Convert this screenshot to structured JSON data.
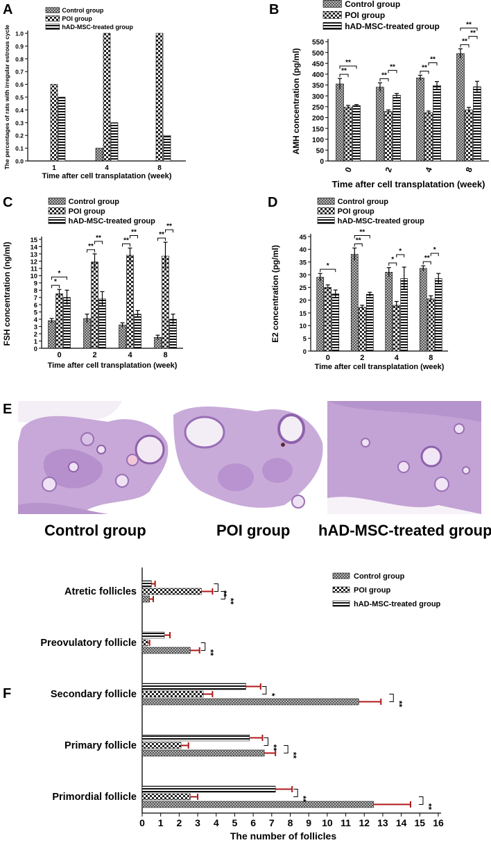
{
  "panels": [
    {
      "letter": "A",
      "type": "bar",
      "title": "",
      "legend": [
        "Control group",
        "POI group",
        "hAD-MSC-treated group"
      ],
      "legend_placement": "top-left",
      "ylabel": "The percentages of rats with irregular estrous cycle",
      "xlabel": "Time after cell transplatation (week)",
      "ylim": [
        0,
        1.0
      ],
      "yticks": [
        "0.0",
        "0.1",
        "0.2",
        "0.3",
        "0.4",
        "0.5",
        "0.6",
        "0.7",
        "0.8",
        "0.9",
        "1.0"
      ],
      "categories": [
        "1",
        "4",
        "8"
      ],
      "series": [
        {
          "name": "Control group",
          "values": [
            0,
            0.1,
            0
          ]
        },
        {
          "name": "POI group",
          "values": [
            0.6,
            1.0,
            1.0
          ]
        },
        {
          "name": "hAD-MSC-treated group",
          "values": [
            0.5,
            0.3,
            0.2
          ]
        }
      ],
      "significance": []
    },
    {
      "letter": "B",
      "type": "bar",
      "title": "",
      "legend": [
        "Control group",
        "POI group",
        "hAD-MSC-treated group"
      ],
      "legend_placement": "top-left",
      "ylabel": "AMH concentration (pg/ml)",
      "xlabel": "Time after cell transplatation (week)",
      "ylim": [
        0,
        550
      ],
      "yticks": [
        "0",
        "50",
        "100",
        "150",
        "200",
        "250",
        "300",
        "350",
        "400",
        "450",
        "500",
        "550"
      ],
      "categories": [
        "0",
        "2",
        "4",
        "8"
      ],
      "series": [
        {
          "name": "Control group",
          "values": [
            355,
            340,
            383,
            495
          ],
          "errors": [
            25,
            20,
            12,
            22
          ]
        },
        {
          "name": "POI group",
          "values": [
            248,
            228,
            222,
            235
          ],
          "errors": [
            8,
            7,
            8,
            12
          ]
        },
        {
          "name": "hAD-MSC-treated group",
          "values": [
            255,
            303,
            348,
            342
          ],
          "errors": [
            5,
            8,
            18,
            25
          ]
        }
      ],
      "significance": [
        {
          "cat": 0,
          "a": 0,
          "b": 1,
          "label": "**"
        },
        {
          "cat": 0,
          "a": 0,
          "b": 2,
          "label": "**"
        },
        {
          "cat": 1,
          "a": 0,
          "b": 1,
          "label": "**"
        },
        {
          "cat": 1,
          "a": 1,
          "b": 2,
          "label": "**"
        },
        {
          "cat": 2,
          "a": 0,
          "b": 1,
          "label": "**"
        },
        {
          "cat": 2,
          "a": 1,
          "b": 2,
          "label": "**"
        },
        {
          "cat": 3,
          "a": 0,
          "b": 1,
          "label": "**"
        },
        {
          "cat": 3,
          "a": 1,
          "b": 2,
          "label": "**"
        },
        {
          "cat": 3,
          "a": 0,
          "b": 2,
          "label": "**"
        }
      ]
    },
    {
      "letter": "C",
      "type": "bar",
      "title": "",
      "legend": [
        "Control group",
        "POI group",
        "hAD-MSC-treated group"
      ],
      "legend_placement": "top-left",
      "ylabel": "FSH concentration (ng/ml)",
      "xlabel": "Time after cell transplatation (week)",
      "ylim": [
        0,
        15
      ],
      "yticks": [
        "0",
        "1",
        "2",
        "3",
        "4",
        "5",
        "6",
        "7",
        "8",
        "9",
        "10",
        "11",
        "12",
        "13",
        "14",
        "15"
      ],
      "categories": [
        "0",
        "2",
        "4",
        "8"
      ],
      "series": [
        {
          "name": "Control group",
          "values": [
            3.8,
            4.1,
            3.2,
            1.5
          ],
          "errors": [
            0.3,
            0.6,
            0.3,
            0.3
          ]
        },
        {
          "name": "POI group",
          "values": [
            7.5,
            11.9,
            12.8,
            12.7
          ],
          "errors": [
            0.6,
            1.1,
            1.0,
            1.9
          ]
        },
        {
          "name": "hAD-MSC-treated group",
          "values": [
            7.0,
            6.8,
            4.7,
            4.0
          ],
          "errors": [
            1.0,
            1.0,
            0.5,
            0.7
          ]
        }
      ],
      "significance": [
        {
          "cat": 0,
          "a": 0,
          "b": 1,
          "label": "*"
        },
        {
          "cat": 0,
          "a": 0,
          "b": 2,
          "label": "*"
        },
        {
          "cat": 1,
          "a": 0,
          "b": 1,
          "label": "**"
        },
        {
          "cat": 1,
          "a": 1,
          "b": 2,
          "label": "**"
        },
        {
          "cat": 2,
          "a": 0,
          "b": 1,
          "label": "**"
        },
        {
          "cat": 2,
          "a": 1,
          "b": 2,
          "label": "**"
        },
        {
          "cat": 3,
          "a": 0,
          "b": 1,
          "label": "**"
        },
        {
          "cat": 3,
          "a": 1,
          "b": 2,
          "label": "**"
        }
      ]
    },
    {
      "letter": "D",
      "type": "bar",
      "title": "",
      "legend": [
        "Control group",
        "POI group",
        "hAD-MSC-treated group"
      ],
      "legend_placement": "top-left",
      "ylabel": "E2 concentration (pg/ml)",
      "xlabel": "Time after cell transplatation (week)",
      "ylim": [
        0,
        45
      ],
      "yticks": [
        "0",
        "5",
        "10",
        "15",
        "20",
        "25",
        "30",
        "35",
        "40",
        "45"
      ],
      "categories": [
        "0",
        "2",
        "4",
        "8"
      ],
      "series": [
        {
          "name": "Control group",
          "values": [
            29,
            38,
            31,
            32.5
          ],
          "errors": [
            1.5,
            2.5,
            1.8,
            1.0
          ]
        },
        {
          "name": "POI group",
          "values": [
            25,
            17.2,
            18,
            20.5
          ],
          "errors": [
            1.0,
            0.8,
            1.5,
            1.2
          ]
        },
        {
          "name": "hAD-MSC-treated group",
          "values": [
            22.5,
            22.3,
            28.5,
            28.5
          ],
          "errors": [
            1.5,
            0.8,
            4.5,
            2.0
          ]
        }
      ],
      "significance": [
        {
          "cat": 0,
          "a": 0,
          "b": 2,
          "label": "*"
        },
        {
          "cat": 1,
          "a": 0,
          "b": 1,
          "label": "**"
        },
        {
          "cat": 1,
          "a": 0,
          "b": 2,
          "label": "**"
        },
        {
          "cat": 2,
          "a": 0,
          "b": 1,
          "label": "*"
        },
        {
          "cat": 2,
          "a": 1,
          "b": 2,
          "label": "*"
        },
        {
          "cat": 3,
          "a": 0,
          "b": 1,
          "label": "**"
        },
        {
          "cat": 3,
          "a": 1,
          "b": 2,
          "label": "*"
        }
      ]
    }
  ],
  "histology": {
    "letter": "E",
    "captions": [
      "Control group",
      "POI group",
      "hAD-MSC-treated group"
    ]
  },
  "chart_data": [
    {
      "panel": "A",
      "type": "bar",
      "categories": [
        "1",
        "4",
        "8"
      ],
      "series": [
        {
          "name": "Control group",
          "values": [
            0,
            0.1,
            0
          ]
        },
        {
          "name": "POI group",
          "values": [
            0.6,
            1.0,
            1.0
          ]
        },
        {
          "name": "hAD-MSC-treated group",
          "values": [
            0.5,
            0.3,
            0.2
          ]
        }
      ],
      "xlabel": "Time after cell transplatation (week)",
      "ylabel": "The percentages of rats with irregular estrous cycle",
      "ylim": [
        0,
        1.0
      ]
    },
    {
      "panel": "B",
      "type": "bar",
      "categories": [
        "0",
        "2",
        "4",
        "8"
      ],
      "series": [
        {
          "name": "Control group",
          "values": [
            355,
            340,
            383,
            495
          ]
        },
        {
          "name": "POI group",
          "values": [
            248,
            228,
            222,
            235
          ]
        },
        {
          "name": "hAD-MSC-treated group",
          "values": [
            255,
            303,
            348,
            342
          ]
        }
      ],
      "xlabel": "Time after cell transplatation (week)",
      "ylabel": "AMH concentration (pg/ml)",
      "ylim": [
        0,
        550
      ]
    },
    {
      "panel": "C",
      "type": "bar",
      "categories": [
        "0",
        "2",
        "4",
        "8"
      ],
      "series": [
        {
          "name": "Control group",
          "values": [
            3.8,
            4.1,
            3.2,
            1.5
          ]
        },
        {
          "name": "POI group",
          "values": [
            7.5,
            11.9,
            12.8,
            12.7
          ]
        },
        {
          "name": "hAD-MSC-treated group",
          "values": [
            7.0,
            6.8,
            4.7,
            4.0
          ]
        }
      ],
      "xlabel": "Time after cell transplatation (week)",
      "ylabel": "FSH concentration (ng/ml)",
      "ylim": [
        0,
        15
      ]
    },
    {
      "panel": "D",
      "type": "bar",
      "categories": [
        "0",
        "2",
        "4",
        "8"
      ],
      "series": [
        {
          "name": "Control group",
          "values": [
            29,
            38,
            31,
            32.5
          ]
        },
        {
          "name": "POI group",
          "values": [
            25,
            17.2,
            18,
            20.5
          ]
        },
        {
          "name": "hAD-MSC-treated group",
          "values": [
            22.5,
            22.3,
            28.5,
            28.5
          ]
        }
      ],
      "xlabel": "Time after cell transplatation (week)",
      "ylabel": "E2 concentration (pg/ml)",
      "ylim": [
        0,
        45
      ]
    },
    {
      "panel": "F",
      "type": "bar",
      "orientation": "horizontal",
      "categories": [
        "Atretic follicles",
        "Preovulatory follicle",
        "Secondary follicle",
        "Primary follicle",
        "Primordial follicle"
      ],
      "series": [
        {
          "name": "Control group",
          "values": [
            0.4,
            2.6,
            11.7,
            6.6,
            12.5
          ],
          "errors": [
            0.2,
            0.5,
            1.2,
            0.6,
            2.0
          ]
        },
        {
          "name": "POI group",
          "values": [
            3.2,
            0.3,
            3.3,
            2.1,
            2.6
          ],
          "errors": [
            0.6,
            0.1,
            0.5,
            0.4,
            0.4
          ]
        },
        {
          "name": "hAD-MSC-treated group",
          "values": [
            0.5,
            1.2,
            5.6,
            5.8,
            7.2
          ],
          "errors": [
            0.2,
            0.3,
            0.8,
            0.7,
            0.9
          ]
        }
      ],
      "xlabel": "The number of follicles",
      "xlim": [
        0,
        16
      ],
      "xticks": [
        "0",
        "1",
        "2",
        "3",
        "4",
        "5",
        "6",
        "7",
        "8",
        "9",
        "10",
        "11",
        "12",
        "13",
        "14",
        "15",
        "16"
      ],
      "legend": [
        "Control group",
        "POI group",
        "hAD-MSC-treated group"
      ],
      "legend_placement": "top-right",
      "significance": [
        {
          "cat": 0,
          "a": 1,
          "b": 2,
          "label": "**"
        },
        {
          "cat": 0,
          "a": 0,
          "b": 1,
          "label": "**"
        },
        {
          "cat": 1,
          "a": 0,
          "b": 1,
          "label": "**"
        },
        {
          "cat": 2,
          "a": 1,
          "b": 2,
          "label": "*"
        },
        {
          "cat": 2,
          "a": 0,
          "b": 1,
          "label": "**"
        },
        {
          "cat": 3,
          "a": 1,
          "b": 2,
          "label": "**"
        },
        {
          "cat": 3,
          "a": 0,
          "b": 1,
          "label": "**"
        },
        {
          "cat": 4,
          "a": 1,
          "b": 2,
          "label": "**"
        },
        {
          "cat": 4,
          "a": 0,
          "b": 1,
          "label": "**"
        }
      ]
    }
  ],
  "colors": {
    "control_fill": "#8c8c8c",
    "poi_fill": "#ffffff",
    "treated_fill": "#2a2a2a",
    "error_red": "#b01818",
    "tissue": "#c6a6d6",
    "tissue_dark": "#9a6fb6"
  }
}
